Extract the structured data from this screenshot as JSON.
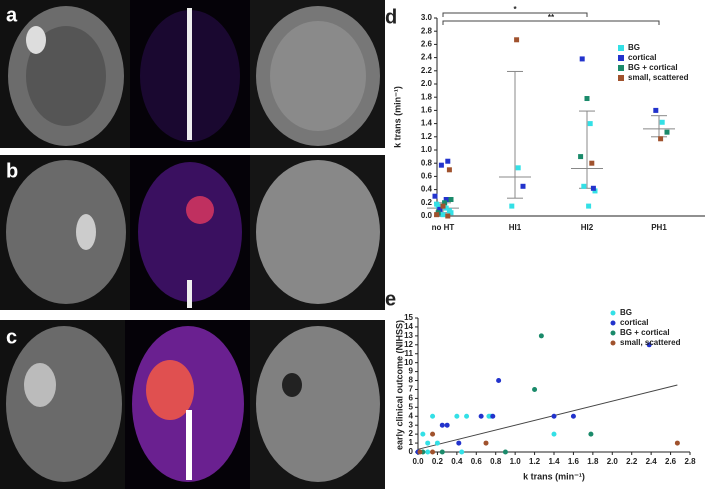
{
  "images": [
    {
      "label": "a"
    },
    {
      "label": "b"
    },
    {
      "label": "c"
    }
  ],
  "chart_data": [
    {
      "type": "scatter",
      "label": "d",
      "y_label": "k trans (min⁻¹)",
      "categories": [
        "no HT",
        "HI1",
        "HI2",
        "PH1"
      ],
      "ylim": [
        0,
        3.0
      ],
      "yticks": [
        {
          "value": 0,
          "label": "0.0"
        },
        {
          "value": 0.2,
          "label": "0.2"
        },
        {
          "value": 0.4,
          "label": "0.4"
        },
        {
          "value": 0.6,
          "label": "0.6"
        },
        {
          "value": 0.8,
          "label": "0.8"
        },
        {
          "value": 1,
          "label": "1.0"
        },
        {
          "value": 1.2,
          "label": "1.2"
        },
        {
          "value": 1.4,
          "label": "1.4"
        },
        {
          "value": 1.6,
          "label": "1.6"
        },
        {
          "value": 1.8,
          "label": "1.8"
        },
        {
          "value": 2,
          "label": "2.0"
        },
        {
          "value": 2.2,
          "label": "2.2"
        },
        {
          "value": 2.4,
          "label": "2.4"
        },
        {
          "value": 2.6,
          "label": "2.6"
        },
        {
          "value": 2.8,
          "label": "2.8"
        },
        {
          "value": 3,
          "label": "3.0"
        }
      ],
      "marker": "square",
      "series": [
        {
          "name": "BG",
          "color": "#33e0e6",
          "x": [
            "no HT",
            "no HT",
            "no HT",
            "no HT",
            "no HT",
            "no HT",
            "no HT",
            "no HT",
            "HI1",
            "HI1",
            "HI2",
            "HI2",
            "HI2",
            "HI2",
            "PH1"
          ],
          "values": [
            0.12,
            0.1,
            0.05,
            0.2,
            0.15,
            0.08,
            0.02,
            0.18,
            0.73,
            0.15,
            1.4,
            0.45,
            0.38,
            0.15,
            1.42
          ]
        },
        {
          "name": "cortical",
          "color": "#2233cc",
          "x": [
            "no HT",
            "no HT",
            "no HT",
            "no HT",
            "no HT",
            "HI1",
            "HI2",
            "HI2",
            "PH1"
          ],
          "values": [
            0.83,
            0.77,
            0.3,
            0.25,
            0.1,
            0.45,
            2.38,
            0.42,
            1.6
          ]
        },
        {
          "name": "BG + cortical",
          "color": "#1a8a6a",
          "x": [
            "no HT",
            "no HT",
            "no HT",
            "HI2",
            "HI2",
            "PH1"
          ],
          "values": [
            0.25,
            0.2,
            0.05,
            1.78,
            0.9,
            1.27
          ]
        },
        {
          "name": "small, scattered",
          "color": "#a0522d",
          "x": [
            "no HT",
            "no HT",
            "no HT",
            "no HT",
            "HI1",
            "HI2",
            "PH1"
          ],
          "values": [
            0.7,
            0.15,
            0.02,
            0.0,
            2.67,
            0.8,
            1.17
          ]
        }
      ],
      "summary": {
        "median": [
          0.12,
          0.59,
          0.72,
          1.32
        ],
        "lower": [
          0.05,
          0.27,
          0.42,
          1.2
        ],
        "upper": [
          0.2,
          2.19,
          1.59,
          1.52
        ]
      },
      "annotations": [
        {
          "text": "*",
          "from": "no HT",
          "to": "HI2"
        },
        {
          "text": "**",
          "from": "no HT",
          "to": "PH1"
        }
      ],
      "legend": "top-right"
    },
    {
      "type": "scatter",
      "label": "e",
      "x_label": "k trans (min⁻¹)",
      "y_label": "early clinical outcome (NIHSS)",
      "xlim": [
        0,
        2.8
      ],
      "ylim": [
        0,
        15
      ],
      "xticks": [
        {
          "value": 0,
          "label": "0.0"
        },
        {
          "value": 0.2,
          "label": "0.2"
        },
        {
          "value": 0.4,
          "label": "0.4"
        },
        {
          "value": 0.6,
          "label": "0.6"
        },
        {
          "value": 0.8,
          "label": "0.8"
        },
        {
          "value": 1,
          "label": "1.0"
        },
        {
          "value": 1.2,
          "label": "1.2"
        },
        {
          "value": 1.4,
          "label": "1.4"
        },
        {
          "value": 1.6,
          "label": "1.6"
        },
        {
          "value": 1.8,
          "label": "1.8"
        },
        {
          "value": 2,
          "label": "2.0"
        },
        {
          "value": 2.2,
          "label": "2.2"
        },
        {
          "value": 2.4,
          "label": "2.4"
        },
        {
          "value": 2.6,
          "label": "2.6"
        },
        {
          "value": 2.8,
          "label": "2.8"
        }
      ],
      "yticks": [
        0,
        1,
        2,
        3,
        4,
        5,
        6,
        7,
        8,
        9,
        10,
        11,
        12,
        13,
        14,
        15
      ],
      "marker": "circle",
      "series": [
        {
          "name": "BG",
          "color": "#33e0e6",
          "x": [
            0,
            0.05,
            0.1,
            0.15,
            0.2,
            0.4,
            0.5,
            0.73,
            0.75,
            1.4,
            0.45,
            0.1
          ],
          "values": [
            0,
            2,
            0,
            4,
            1,
            4,
            4,
            4,
            4,
            2,
            0,
            1
          ]
        },
        {
          "name": "cortical",
          "color": "#2233cc",
          "x": [
            0.25,
            0.3,
            0.42,
            0.65,
            0.83,
            1.4,
            1.6,
            2.38,
            0.77,
            0
          ],
          "values": [
            3,
            3,
            1,
            4,
            8,
            4,
            4,
            12,
            4,
            0
          ]
        },
        {
          "name": "BG + cortical",
          "color": "#1a8a6a",
          "x": [
            1.27,
            1.2,
            1.78,
            0.9,
            0.25,
            0.05
          ],
          "values": [
            13,
            7,
            2,
            0,
            0,
            0
          ]
        },
        {
          "name": "small, scattered",
          "color": "#a0522d",
          "x": [
            2.67,
            0.7,
            0.15,
            0.02,
            0.15
          ],
          "values": [
            1,
            1,
            2,
            0,
            0
          ]
        }
      ],
      "trend_line": {
        "x": [
          0,
          2.67
        ],
        "y": [
          0.3,
          7.5
        ]
      },
      "legend": "top-right"
    }
  ]
}
